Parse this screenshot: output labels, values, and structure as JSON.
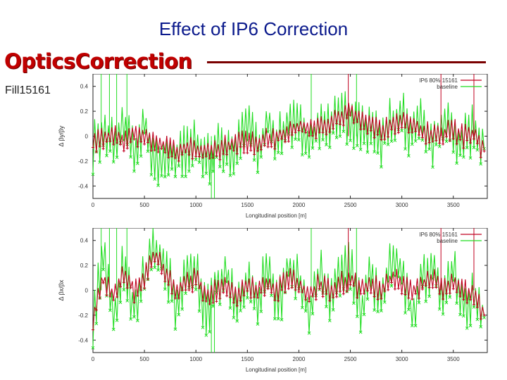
{
  "slide": {
    "title": "Effect of IP6 Correction",
    "brand": "OpticsCorrection",
    "fill_label": "Fill15161"
  },
  "colors": {
    "title": "#0b1a8c",
    "brand": "#c00000",
    "ip6": "#c00020",
    "baseline": "#22dd22"
  },
  "chart_data": [
    {
      "type": "line",
      "ylabel": "Δ βy/βy",
      "xlabel": "Longitudinal position [m]",
      "xlim": [
        0,
        3830
      ],
      "ylim": [
        -0.5,
        0.5
      ],
      "xticks": [
        "0",
        "500",
        "1000",
        "1500",
        "2000",
        "2500",
        "3000",
        "3500"
      ],
      "yticks": [
        "0.4",
        "0.2",
        "0",
        "-0.2",
        "-0.4"
      ],
      "legend": [
        "IP6 80% 15161",
        "baseline"
      ],
      "series": [
        {
          "name": "IP6 80% 15161",
          "x": [
            0,
            100,
            200,
            300,
            400,
            500,
            600,
            700,
            800,
            900,
            1000,
            1100,
            1200,
            1300,
            1400,
            1500,
            1600,
            1700,
            1800,
            1900,
            2000,
            2100,
            2200,
            2300,
            2400,
            2500,
            2600,
            2700,
            2800,
            2900,
            3000,
            3100,
            3200,
            3300,
            3400,
            3500,
            3600,
            3700,
            3800
          ],
          "values": [
            -0.05,
            -0.02,
            0.0,
            -0.03,
            0.01,
            0.0,
            -0.05,
            -0.08,
            -0.12,
            -0.1,
            -0.1,
            -0.12,
            -0.1,
            -0.08,
            -0.05,
            -0.05,
            -0.05,
            -0.02,
            0.0,
            0.02,
            0.08,
            0.05,
            0.08,
            0.1,
            0.15,
            0.2,
            0.15,
            0.1,
            0.05,
            0.1,
            0.12,
            0.08,
            0.05,
            0.0,
            0.02,
            0.05,
            0.0,
            0.02,
            -0.12
          ]
        },
        {
          "name": "baseline",
          "x": [
            0,
            100,
            200,
            300,
            400,
            500,
            600,
            700,
            800,
            900,
            1000,
            1100,
            1200,
            1300,
            1400,
            1500,
            1600,
            1700,
            1800,
            1900,
            2000,
            2100,
            2200,
            2300,
            2400,
            2500,
            2600,
            2700,
            2800,
            2900,
            3000,
            3100,
            3200,
            3300,
            3400,
            3500,
            3600,
            3700,
            3800
          ],
          "values": [
            -0.1,
            0.05,
            -0.08,
            0.08,
            -0.15,
            0.1,
            -0.18,
            -0.2,
            -0.15,
            -0.12,
            -0.08,
            -0.2,
            -0.1,
            -0.15,
            -0.05,
            0.05,
            -0.1,
            0.1,
            -0.05,
            0.15,
            0.08,
            -0.1,
            0.12,
            0.05,
            0.2,
            0.1,
            0.05,
            0.1,
            -0.05,
            0.12,
            0.15,
            0.02,
            0.12,
            -0.05,
            0.1,
            0.0,
            -0.05,
            0.05,
            -0.1
          ]
        }
      ]
    },
    {
      "type": "line",
      "ylabel": "Δ βx/βx",
      "xlabel": "Longitudinal position [m]",
      "xlim": [
        0,
        3830
      ],
      "ylim": [
        -0.5,
        0.5
      ],
      "xticks": [
        "0",
        "500",
        "1000",
        "1500",
        "2000",
        "2500",
        "3000",
        "3500"
      ],
      "yticks": [
        "0.4",
        "0.2",
        "0",
        "-0.2",
        "-0.4"
      ],
      "legend": [
        "IP6 80% 15161",
        "baseline"
      ],
      "series": [
        {
          "name": "IP6 80% 15161",
          "x": [
            0,
            100,
            200,
            300,
            400,
            500,
            600,
            700,
            800,
            900,
            1000,
            1100,
            1200,
            1300,
            1400,
            1500,
            1600,
            1700,
            1800,
            1900,
            2000,
            2100,
            2200,
            2300,
            2400,
            2500,
            2600,
            2700,
            2800,
            2900,
            3000,
            3100,
            3200,
            3300,
            3400,
            3500,
            3600,
            3700,
            3800
          ],
          "values": [
            -0.22,
            0.1,
            -0.05,
            0.15,
            0.0,
            0.1,
            0.3,
            0.15,
            0.0,
            0.05,
            0.1,
            -0.05,
            0.0,
            0.05,
            -0.05,
            0.05,
            0.0,
            0.05,
            0.0,
            0.1,
            0.05,
            -0.05,
            0.05,
            0.0,
            0.05,
            0.1,
            0.0,
            0.05,
            0.0,
            0.1,
            0.05,
            0.0,
            0.05,
            0.1,
            0.0,
            0.05,
            0.0,
            -0.05,
            -0.2
          ]
        },
        {
          "name": "baseline",
          "x": [
            0,
            100,
            200,
            300,
            400,
            500,
            600,
            700,
            800,
            900,
            1000,
            1100,
            1200,
            1300,
            1400,
            1500,
            1600,
            1700,
            1800,
            1900,
            2000,
            2100,
            2200,
            2300,
            2400,
            2500,
            2600,
            2700,
            2800,
            2900,
            3000,
            3100,
            3200,
            3300,
            3400,
            3500,
            3600,
            3700,
            3800
          ],
          "values": [
            -0.25,
            0.25,
            -0.2,
            0.2,
            -0.15,
            0.1,
            0.35,
            0.2,
            -0.1,
            0.1,
            0.15,
            -0.2,
            0.05,
            0.15,
            -0.15,
            0.1,
            -0.1,
            0.2,
            -0.15,
            0.2,
            0.1,
            -0.2,
            0.15,
            -0.1,
            0.15,
            0.2,
            -0.15,
            0.1,
            -0.1,
            0.25,
            0.15,
            -0.2,
            0.1,
            0.2,
            -0.1,
            0.15,
            -0.1,
            -0.05,
            -0.22
          ]
        }
      ]
    }
  ]
}
